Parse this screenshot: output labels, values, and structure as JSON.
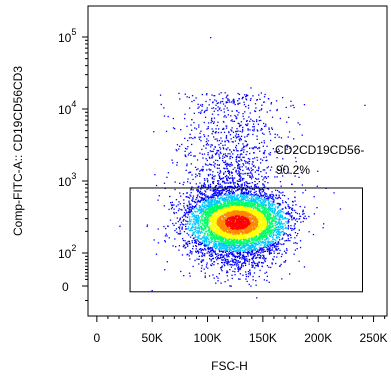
{
  "chart_data": {
    "type": "scatter",
    "subtype": "flow-cytometry density dot plot",
    "xlabel": "FSC-H",
    "ylabel": "Comp-FITC-A:: CD19CD56CD3",
    "x_scale": "linear",
    "y_scale": "biexponential",
    "xlim": [
      -8000,
      262144
    ],
    "ylim": [
      -100,
      200000
    ],
    "x_ticks": [
      {
        "value": 0,
        "label": "0"
      },
      {
        "value": 50000,
        "label": "50K"
      },
      {
        "value": 100000,
        "label": "100K"
      },
      {
        "value": 150000,
        "label": "150K"
      },
      {
        "value": 200000,
        "label": "200K"
      },
      {
        "value": 250000,
        "label": "250K"
      }
    ],
    "y_ticks": [
      {
        "value": 0,
        "label": "0"
      },
      {
        "value": 100,
        "label": "10",
        "exponent": "2"
      },
      {
        "value": 1000,
        "label": "10",
        "exponent": "3"
      },
      {
        "value": 10000,
        "label": "10",
        "exponent": "4"
      },
      {
        "value": 100000,
        "label": "10",
        "exponent": "5"
      }
    ],
    "population": {
      "x_center": 135000,
      "y_center": 250,
      "note_density_colors": [
        "#0000ff",
        "#00c8ff",
        "#00ff66",
        "#ffff00",
        "#ff8800",
        "#ff0000"
      ]
    },
    "gate": {
      "shape": "rectangle",
      "x_range": [
        30000,
        240000
      ],
      "y_range": [
        -20,
        800
      ],
      "name": "CD2CD19CD56-",
      "percent": "90.2%"
    },
    "grid": false,
    "legend": "none"
  }
}
